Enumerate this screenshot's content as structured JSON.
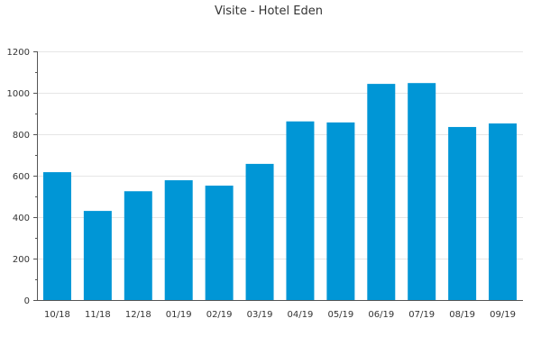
{
  "chart_data": {
    "type": "bar",
    "title": "Visite - Hotel Eden",
    "xlabel": "",
    "ylabel": "",
    "categories": [
      "10/18",
      "11/18",
      "12/18",
      "01/19",
      "02/19",
      "03/19",
      "04/19",
      "05/19",
      "06/19",
      "07/19",
      "08/19",
      "09/19"
    ],
    "values": [
      617,
      430,
      525,
      578,
      552,
      657,
      862,
      857,
      1043,
      1047,
      835,
      852
    ],
    "ylim": [
      0,
      1200
    ],
    "yticks": [
      0,
      200,
      400,
      600,
      800,
      1000,
      1200
    ],
    "grid": true,
    "bar_color": "#0096d6"
  }
}
